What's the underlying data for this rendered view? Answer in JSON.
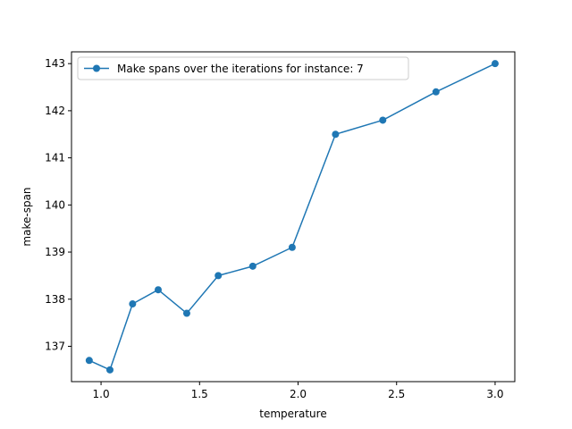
{
  "chart_data": {
    "type": "line",
    "title": "",
    "xlabel": "temperature",
    "ylabel": "make-span",
    "xlim": [
      0.85,
      3.1
    ],
    "ylim": [
      136.25,
      143.25
    ],
    "xticks": [
      1.0,
      1.5,
      2.0,
      2.5,
      3.0
    ],
    "xtick_labels": [
      "1.0",
      "1.5",
      "2.0",
      "2.5",
      "3.0"
    ],
    "yticks": [
      137,
      138,
      139,
      140,
      141,
      142,
      143
    ],
    "ytick_labels": [
      "137",
      "138",
      "139",
      "140",
      "141",
      "142",
      "143"
    ],
    "grid": false,
    "legend_position": "top-left",
    "series": [
      {
        "name": "Make spans over the iterations for instance: 7",
        "color": "#1f77b4",
        "marker": "circle",
        "x": [
          0.94,
          1.045,
          1.16,
          1.29,
          1.435,
          1.595,
          1.77,
          1.97,
          2.19,
          2.43,
          2.7,
          3.0
        ],
        "y": [
          136.7,
          136.5,
          137.9,
          138.2,
          137.7,
          138.5,
          138.7,
          139.1,
          141.5,
          141.8,
          142.4,
          143.0
        ]
      }
    ]
  }
}
